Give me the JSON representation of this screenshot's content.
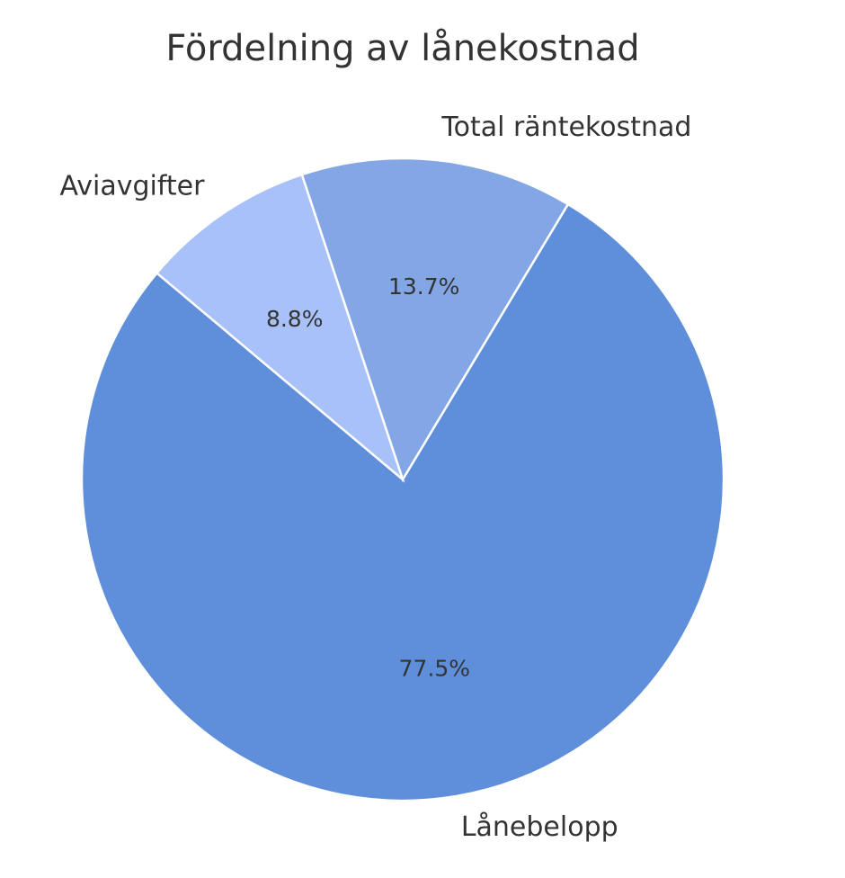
{
  "chart_data": {
    "type": "pie",
    "title": "Fördelning av lånekostnad",
    "categories": [
      "Lånebelopp",
      "Total räntekostnad",
      "Aviavgifter"
    ],
    "values": [
      77.5,
      13.7,
      8.8
    ],
    "value_labels": [
      "77.5%",
      "13.7%",
      "8.8%"
    ],
    "colors": [
      "#5f8fdb",
      "#82a7e4",
      "#a8c1f8"
    ]
  }
}
